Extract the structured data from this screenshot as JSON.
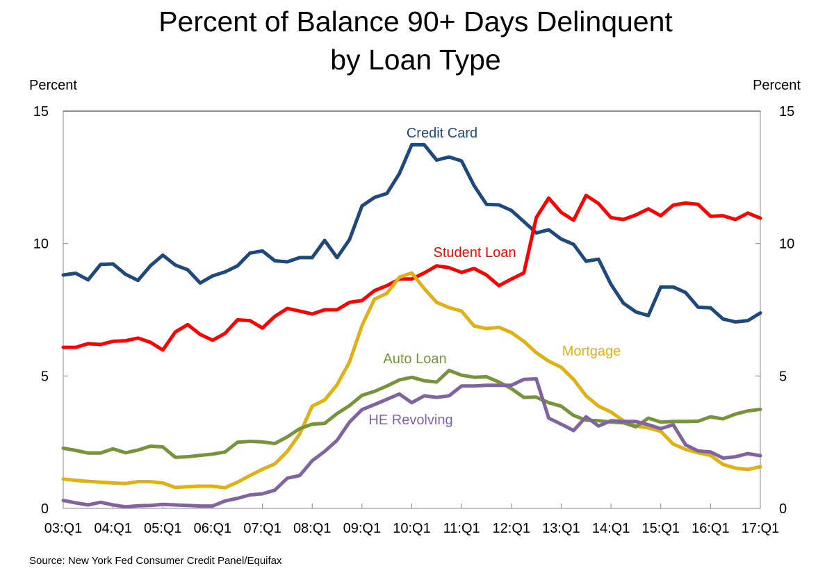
{
  "chart_data": {
    "type": "line",
    "title": [
      "Percent of Balance 90+ Days Delinquent",
      "by Loan Type"
    ],
    "ylabel_left": "Percent",
    "ylabel_right": "Percent",
    "ylim": [
      0,
      15
    ],
    "yticks": [
      "0",
      "5",
      "10",
      "15"
    ],
    "xtick_labels": [
      "03:Q1",
      "04:Q1",
      "05:Q1",
      "06:Q1",
      "07:Q1",
      "08:Q1",
      "09:Q1",
      "10:Q1",
      "11:Q1",
      "12:Q1",
      "13:Q1",
      "14:Q1",
      "15:Q1",
      "16:Q1",
      "17:Q1"
    ],
    "x_start": "03:Q1",
    "x_end": "17:Q1",
    "frequency": "quarterly",
    "grid": false,
    "legend": "inline labels",
    "source": "Source: New York Fed Consumer Credit Panel/Equifax",
    "series": [
      {
        "name": "Credit Card",
        "color": "#1f497d",
        "values": [
          8.81,
          8.88,
          8.63,
          9.21,
          9.23,
          8.84,
          8.61,
          9.16,
          9.56,
          9.19,
          9.01,
          8.51,
          8.78,
          8.93,
          9.16,
          9.64,
          9.72,
          9.35,
          9.31,
          9.47,
          9.47,
          10.12,
          9.47,
          10.15,
          11.42,
          11.74,
          11.89,
          12.64,
          13.73,
          13.73,
          13.15,
          13.27,
          13.12,
          12.19,
          11.48,
          11.46,
          11.25,
          10.83,
          10.4,
          10.52,
          10.17,
          9.97,
          9.33,
          9.41,
          8.46,
          7.75,
          7.42,
          7.28,
          8.36,
          8.36,
          8.15,
          7.6,
          7.57,
          7.15,
          7.04,
          7.09,
          7.38
        ]
      },
      {
        "name": "Student Loan",
        "color": "#ff0000",
        "values": [
          6.08,
          6.08,
          6.22,
          6.19,
          6.31,
          6.33,
          6.43,
          6.27,
          5.98,
          6.66,
          6.94,
          6.57,
          6.35,
          6.61,
          7.12,
          7.09,
          6.81,
          7.25,
          7.55,
          7.45,
          7.34,
          7.5,
          7.5,
          7.78,
          7.85,
          8.22,
          8.41,
          8.66,
          8.66,
          8.89,
          9.16,
          9.09,
          8.91,
          9.06,
          8.81,
          8.41,
          8.66,
          8.89,
          10.98,
          11.72,
          11.18,
          10.88,
          11.82,
          11.51,
          10.98,
          10.91,
          11.08,
          11.31,
          11.05,
          11.45,
          11.53,
          11.48,
          11.03,
          11.05,
          10.91,
          11.15,
          10.96
        ]
      },
      {
        "name": "Mortgage",
        "color": "#dfb115",
        "values": [
          1.11,
          1.06,
          1.02,
          0.99,
          0.96,
          0.94,
          1.01,
          1.01,
          0.96,
          0.79,
          0.82,
          0.84,
          0.84,
          0.78,
          0.99,
          1.24,
          1.48,
          1.68,
          2.15,
          2.81,
          3.86,
          4.09,
          4.67,
          5.53,
          6.91,
          7.9,
          8.12,
          8.73,
          8.89,
          8.3,
          7.78,
          7.58,
          7.45,
          6.89,
          6.79,
          6.84,
          6.64,
          6.31,
          5.88,
          5.56,
          5.33,
          4.87,
          4.25,
          3.86,
          3.64,
          3.31,
          3.11,
          3.04,
          2.91,
          2.43,
          2.23,
          2.1,
          2.0,
          1.66,
          1.52,
          1.47,
          1.57
        ]
      },
      {
        "name": "Auto Loan",
        "color": "#77933c",
        "values": [
          2.27,
          2.19,
          2.09,
          2.09,
          2.25,
          2.1,
          2.2,
          2.35,
          2.32,
          1.93,
          1.95,
          2.0,
          2.05,
          2.13,
          2.5,
          2.53,
          2.51,
          2.45,
          2.7,
          3.01,
          3.18,
          3.21,
          3.58,
          3.88,
          4.27,
          4.42,
          4.62,
          4.85,
          4.95,
          4.82,
          4.77,
          5.21,
          5.03,
          4.95,
          4.97,
          4.77,
          4.52,
          4.19,
          4.2,
          3.99,
          3.86,
          3.51,
          3.33,
          3.31,
          3.26,
          3.23,
          3.08,
          3.41,
          3.26,
          3.28,
          3.28,
          3.29,
          3.46,
          3.38,
          3.56,
          3.68,
          3.74
        ]
      },
      {
        "name": "HE Revolving",
        "color": "#8064a2",
        "values": [
          0.3,
          0.21,
          0.13,
          0.23,
          0.13,
          0.06,
          0.1,
          0.11,
          0.15,
          0.13,
          0.11,
          0.09,
          0.09,
          0.28,
          0.38,
          0.51,
          0.55,
          0.69,
          1.14,
          1.24,
          1.8,
          2.15,
          2.57,
          3.26,
          3.73,
          3.92,
          4.12,
          4.32,
          3.99,
          4.25,
          4.19,
          4.25,
          4.62,
          4.62,
          4.65,
          4.65,
          4.65,
          4.87,
          4.89,
          3.41,
          3.18,
          2.94,
          3.46,
          3.11,
          3.31,
          3.28,
          3.28,
          3.16,
          3.01,
          3.16,
          2.4,
          2.17,
          2.13,
          1.9,
          1.95,
          2.07,
          1.99
        ]
      }
    ]
  }
}
